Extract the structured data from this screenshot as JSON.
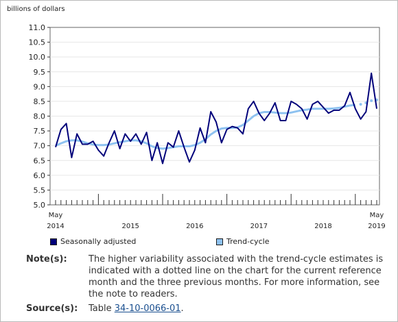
{
  "chart_data": {
    "type": "line",
    "ylabel": "billions of dollars",
    "ylim": [
      5.0,
      11.0
    ],
    "y_ticks": [
      "11.0",
      "10.5",
      "10.0",
      "9.5",
      "9.0",
      "8.5",
      "8.0",
      "7.5",
      "7.0",
      "6.5",
      "6.0",
      "5.5",
      "5.0"
    ],
    "x_start": "2014-05",
    "x_end": "2019-05",
    "x_labels": [
      {
        "month": "May",
        "year": "2014"
      },
      {
        "month": "",
        "year": "2015"
      },
      {
        "month": "",
        "year": "2016"
      },
      {
        "month": "",
        "year": "2017"
      },
      {
        "month": "",
        "year": "2018"
      },
      {
        "month": "May",
        "year": "2019"
      }
    ],
    "series": [
      {
        "name": "Seasonally adjusted",
        "color": "#00007a",
        "values": [
          6.95,
          7.55,
          7.75,
          6.6,
          7.4,
          7.05,
          7.05,
          7.15,
          6.85,
          6.65,
          7.1,
          7.5,
          6.9,
          7.4,
          7.15,
          7.4,
          7.05,
          7.45,
          6.5,
          7.1,
          6.4,
          7.1,
          6.95,
          7.5,
          6.95,
          6.45,
          6.85,
          7.6,
          7.1,
          8.15,
          7.8,
          7.1,
          7.55,
          7.65,
          7.6,
          7.4,
          8.25,
          8.5,
          8.1,
          7.85,
          8.1,
          8.45,
          7.85,
          7.85,
          8.5,
          8.4,
          8.25,
          7.9,
          8.4,
          8.5,
          8.3,
          8.1,
          8.2,
          8.2,
          8.35,
          8.8,
          8.25,
          7.9,
          8.15,
          9.45,
          8.25
        ]
      },
      {
        "name": "Trend-cycle",
        "color": "#8ec2f0",
        "dotted_last_months": 4,
        "values": [
          7.0,
          7.08,
          7.15,
          7.18,
          7.18,
          7.14,
          7.08,
          7.04,
          7.02,
          7.02,
          7.04,
          7.08,
          7.12,
          7.15,
          7.18,
          7.18,
          7.15,
          7.08,
          6.98,
          6.92,
          6.9,
          6.92,
          6.95,
          6.98,
          6.98,
          6.98,
          7.02,
          7.1,
          7.22,
          7.38,
          7.5,
          7.58,
          7.6,
          7.6,
          7.62,
          7.7,
          7.85,
          8.0,
          8.1,
          8.14,
          8.14,
          8.12,
          8.1,
          8.1,
          8.12,
          8.16,
          8.2,
          8.22,
          8.25,
          8.25,
          8.25,
          8.25,
          8.26,
          8.28,
          8.32,
          8.36,
          8.38,
          8.4,
          8.45,
          8.52,
          8.55
        ]
      }
    ]
  },
  "legend": {
    "seasonal_label": "Seasonally adjusted",
    "trend_label": "Trend-cycle"
  },
  "notes": {
    "note_label": "Note(s):",
    "note_text": "The higher variability associated with the trend-cycle estimates is indicated with a dotted line on the chart for the current reference month and the three previous months. For more information, see the note to readers.",
    "source_label": "Source(s):",
    "source_prefix": "Table ",
    "source_link": "34-10-0066-01",
    "source_suffix": "."
  }
}
